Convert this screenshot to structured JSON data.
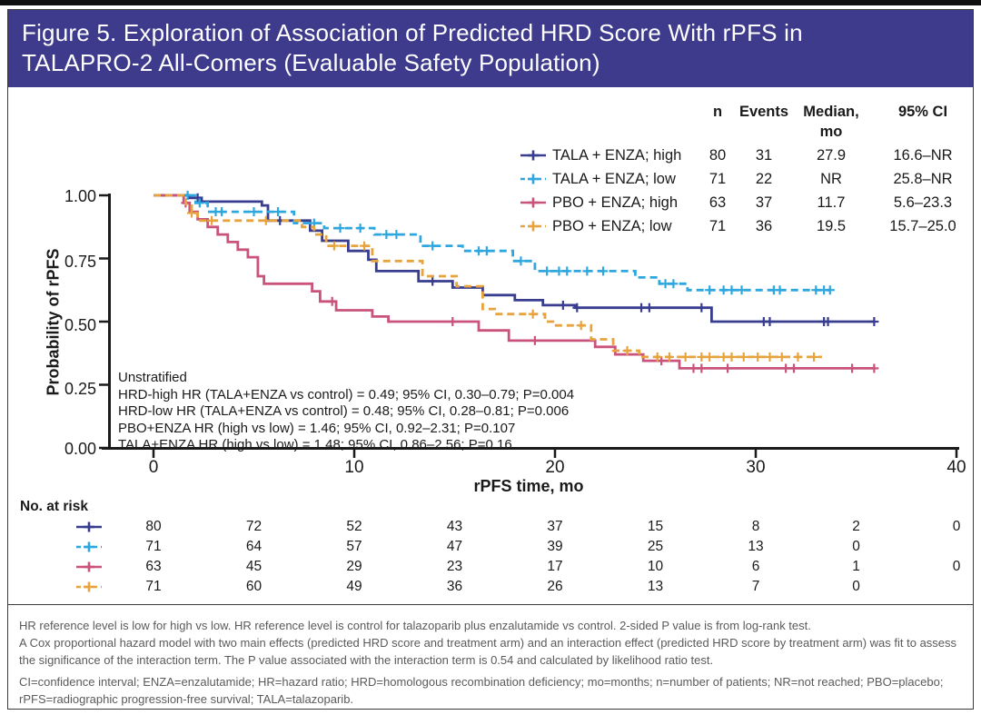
{
  "title": {
    "line1": "Figure 5. Exploration of Association of Predicted HRD Score With rPFS in",
    "line2": "TALAPRO-2 All-Comers (Evaluable Safety Population)"
  },
  "legend": {
    "headers": {
      "n": "n",
      "events": "Events",
      "median_line1": "Median,",
      "median_line2": "mo",
      "ci": "95% CI"
    }
  },
  "chart_data": {
    "type": "line",
    "subtype": "kaplan-meier-step",
    "xlabel": "rPFS time, mo",
    "ylabel": "Probability of rPFS",
    "xlim": [
      0,
      40
    ],
    "ylim": [
      0.0,
      1.0
    ],
    "xticks": [
      "0",
      "10",
      "20",
      "30",
      "40"
    ],
    "yticks": [
      "1.00",
      "0.75",
      "0.50",
      "0.25",
      "0.00"
    ],
    "grid": false,
    "legend_position": "top-right",
    "risk_label": "No. at risk",
    "risk_times": [
      0,
      5,
      10,
      15,
      20,
      25,
      30,
      35,
      40
    ],
    "series": [
      {
        "label": "TALA + ENZA; high",
        "color": "#383d8f",
        "dash": false,
        "n": "80",
        "events": "31",
        "median": "27.9",
        "ci": "16.6–NR",
        "steps": [
          [
            0,
            1.0
          ],
          [
            1.8,
            0.99
          ],
          [
            2.4,
            0.975
          ],
          [
            5.4,
            0.96
          ],
          [
            5.7,
            0.9
          ],
          [
            7.8,
            0.86
          ],
          [
            8.4,
            0.82
          ],
          [
            9.7,
            0.78
          ],
          [
            10.7,
            0.745
          ],
          [
            11.1,
            0.7
          ],
          [
            13.2,
            0.66
          ],
          [
            14.9,
            0.635
          ],
          [
            16.4,
            0.605
          ],
          [
            18.0,
            0.585
          ],
          [
            19.4,
            0.565
          ],
          [
            21.0,
            0.555
          ],
          [
            27.8,
            0.5
          ],
          [
            35.9,
            0.5
          ]
        ],
        "censors": [
          2.2,
          6.3,
          13.9,
          20.4,
          21.1,
          24.3,
          24.7,
          27.3,
          30.4,
          30.7,
          33.4,
          33.6,
          35.9
        ],
        "at_risk": [
          "80",
          "72",
          "52",
          "43",
          "37",
          "15",
          "8",
          "2",
          "0"
        ]
      },
      {
        "label": "TALA + ENZA; low",
        "color": "#2ea7df",
        "dash": true,
        "n": "71",
        "events": "22",
        "median": "NR",
        "ci": "25.8–NR",
        "steps": [
          [
            0,
            1.0
          ],
          [
            2.1,
            0.97
          ],
          [
            2.7,
            0.935
          ],
          [
            7.0,
            0.89
          ],
          [
            8.5,
            0.87
          ],
          [
            11.0,
            0.845
          ],
          [
            13.3,
            0.8
          ],
          [
            15.4,
            0.78
          ],
          [
            17.9,
            0.74
          ],
          [
            19.0,
            0.7
          ],
          [
            24.0,
            0.675
          ],
          [
            25.2,
            0.65
          ],
          [
            26.6,
            0.625
          ],
          [
            33.7,
            0.625
          ]
        ],
        "censors": [
          1.7,
          2.3,
          3.1,
          3.4,
          5.0,
          6.2,
          8.0,
          9.3,
          10.3,
          11.6,
          12.1,
          13.9,
          16.2,
          16.6,
          18.3,
          19.6,
          20.2,
          20.6,
          21.6,
          22.4,
          25.5,
          25.9,
          27.7,
          28.4,
          28.8,
          29.3,
          30.9,
          31.2,
          33.0,
          33.4,
          33.7
        ],
        "at_risk": [
          "71",
          "64",
          "57",
          "47",
          "39",
          "25",
          "13",
          "0"
        ]
      },
      {
        "label": "PBO + ENZA; high",
        "color": "#c9537c",
        "dash": false,
        "n": "63",
        "events": "37",
        "median": "11.7",
        "ci": "5.6–23.3",
        "steps": [
          [
            0,
            1.0
          ],
          [
            1.5,
            0.97
          ],
          [
            1.8,
            0.935
          ],
          [
            2.2,
            0.905
          ],
          [
            2.7,
            0.875
          ],
          [
            3.2,
            0.845
          ],
          [
            3.7,
            0.815
          ],
          [
            4.2,
            0.785
          ],
          [
            4.7,
            0.755
          ],
          [
            5.2,
            0.68
          ],
          [
            5.5,
            0.65
          ],
          [
            7.9,
            0.62
          ],
          [
            8.3,
            0.58
          ],
          [
            9.1,
            0.545
          ],
          [
            10.9,
            0.52
          ],
          [
            11.7,
            0.5
          ],
          [
            16.2,
            0.465
          ],
          [
            17.7,
            0.425
          ],
          [
            22.0,
            0.4
          ],
          [
            23.0,
            0.37
          ],
          [
            24.4,
            0.345
          ],
          [
            26.2,
            0.315
          ],
          [
            35.9,
            0.315
          ]
        ],
        "censors": [
          1.6,
          8.9,
          14.9,
          19.0,
          25.3,
          26.9,
          27.3,
          28.6,
          31.5,
          31.9,
          34.8,
          35.9
        ],
        "at_risk": [
          "63",
          "45",
          "29",
          "23",
          "17",
          "10",
          "6",
          "1",
          "0"
        ]
      },
      {
        "label": "PBO + ENZA; low",
        "color": "#e6a33e",
        "dash": true,
        "n": "71",
        "events": "36",
        "median": "19.5",
        "ci": "15.7–25.0",
        "steps": [
          [
            0,
            1.0
          ],
          [
            1.6,
            0.965
          ],
          [
            1.9,
            0.93
          ],
          [
            2.2,
            0.9
          ],
          [
            7.4,
            0.875
          ],
          [
            8.0,
            0.845
          ],
          [
            8.6,
            0.8
          ],
          [
            10.9,
            0.74
          ],
          [
            13.4,
            0.68
          ],
          [
            15.1,
            0.64
          ],
          [
            16.4,
            0.55
          ],
          [
            17.0,
            0.53
          ],
          [
            19.5,
            0.5
          ],
          [
            19.9,
            0.485
          ],
          [
            21.8,
            0.43
          ],
          [
            22.9,
            0.385
          ],
          [
            24.2,
            0.36
          ],
          [
            33.3,
            0.36
          ]
        ],
        "censors": [
          1.9,
          2.9,
          5.6,
          9.0,
          10.5,
          18.9,
          21.3,
          23.6,
          25.1,
          25.7,
          26.5,
          27.3,
          27.7,
          28.4,
          28.8,
          29.4,
          30.1,
          30.7,
          31.3,
          32.1,
          32.9
        ],
        "at_risk": [
          "71",
          "60",
          "49",
          "36",
          "26",
          "13",
          "7",
          "0"
        ]
      }
    ],
    "annotations": [
      "Unstratified",
      "HRD-high HR (TALA+ENZA vs control) = 0.49; 95% CI, 0.30–0.79; P=0.004",
      "HRD-low HR (TALA+ENZA vs control) = 0.48; 95% CI, 0.28–0.81; P=0.006",
      "PBO+ENZA HR (high vs low) = 1.46; 95% CI, 0.92–2.31; P=0.107",
      "TALA+ENZA HR (high vs low) = 1.48; 95% CI, 0.86–2.56; P=0.16"
    ]
  },
  "footnotes": {
    "p1": "HR reference level is low for high vs low. HR reference level is control for talazoparib plus enzalutamide vs control. 2-sided P value is from log-rank test.",
    "p2": "A Cox proportional hazard model with two main effects (predicted HRD score and treatment arm) and an interaction effect (predicted HRD score by treatment arm) was fit to assess the significance of the interaction term. The P value associated with the interaction term is 0.54 and calculated by likelihood ratio test.",
    "p3": "CI=confidence interval; ENZA=enzalutamide; HR=hazard ratio; HRD=homologous recombination deficiency; mo=months; n=number of patients; NR=not reached; PBO=placebo; rPFS=radiographic progression-free survival; TALA=talazoparib."
  },
  "colors": {
    "header_bg": "#3e3b8c",
    "border": "#3b3b3b",
    "axis": "#1a1a1a",
    "footnote_text": "#5a5a5a",
    "series_navy": "#383d8f",
    "series_blue": "#2ea7df",
    "series_pink": "#c9537c",
    "series_orange": "#e6a33e"
  }
}
